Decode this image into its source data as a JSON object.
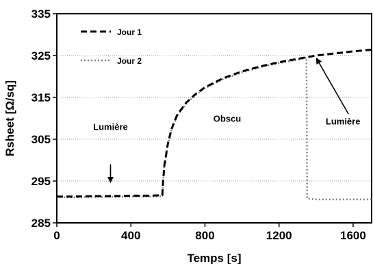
{
  "chart_data": {
    "type": "line",
    "xlabel": "Temps [s]",
    "ylabel": "Rsheet [Ω/sq]",
    "xlim": [
      0,
      1700
    ],
    "ylim": [
      285,
      335
    ],
    "xticks": [
      0,
      400,
      800,
      1200,
      1600
    ],
    "yticks": [
      285,
      295,
      305,
      315,
      325,
      335
    ],
    "xtick_labels": [
      "0",
      "400",
      "800",
      "1200",
      "1600"
    ],
    "ytick_labels": [
      "285",
      "295",
      "305",
      "315",
      "325",
      "335"
    ],
    "grid": "horizontal dotted",
    "legend": "top-left",
    "series": [
      {
        "name": "Jour 1",
        "style": "dashed",
        "color": "#000000",
        "x": [
          0,
          100,
          200,
          300,
          400,
          500,
          570,
          572,
          580,
          600,
          620,
          650,
          700,
          750,
          800,
          900,
          1000,
          1100,
          1200,
          1300,
          1350,
          1400,
          1500,
          1600,
          1700
        ],
        "y": [
          291.3,
          291.3,
          291.4,
          291.4,
          291.5,
          291.5,
          291.6,
          293.5,
          298.5,
          304.0,
          307.5,
          310.8,
          313.8,
          315.8,
          317.4,
          319.6,
          321.2,
          322.4,
          323.4,
          324.2,
          324.6,
          325.0,
          325.5,
          326.0,
          326.4
        ]
      },
      {
        "name": "Jour 2",
        "style": "dotted",
        "color": "#808080",
        "x": [
          0,
          100,
          200,
          300,
          400,
          500,
          570,
          572,
          580,
          600,
          620,
          650,
          700,
          750,
          800,
          900,
          1000,
          1100,
          1200,
          1300,
          1348,
          1352,
          1400,
          1500,
          1600,
          1700
        ],
        "y": [
          291.1,
          291.1,
          291.2,
          291.2,
          291.3,
          291.3,
          291.4,
          293.3,
          298.3,
          303.8,
          307.3,
          310.6,
          313.6,
          315.6,
          317.2,
          319.4,
          321.0,
          322.2,
          323.2,
          324.0,
          324.5,
          290.8,
          290.6,
          290.6,
          290.6,
          290.6
        ]
      }
    ],
    "annotations": [
      {
        "text": "Lumière",
        "x": 290,
        "y": 308,
        "arrow_from": [
          290,
          299
        ],
        "arrow_to": [
          290,
          294.5
        ]
      },
      {
        "text": "Obscu",
        "x": 920,
        "y": 310
      },
      {
        "text": "Lumière",
        "x": 1575,
        "y": 308,
        "arrow_from": [
          1575,
          311
        ],
        "arrow_to": [
          1400,
          324.5
        ]
      }
    ]
  }
}
